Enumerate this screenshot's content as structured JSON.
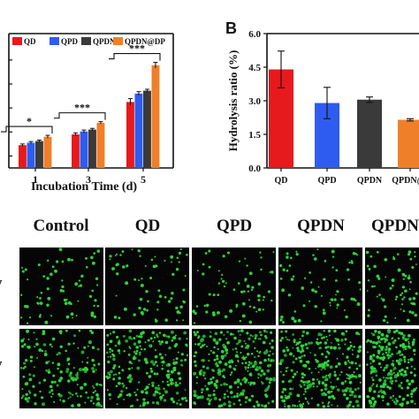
{
  "panel_b_letter": "B",
  "chart_data": [
    {
      "type": "bar",
      "panel": "A",
      "categories": [
        "1",
        "3",
        "5"
      ],
      "xlabel": "Incubation Time (d)",
      "ylabel": "",
      "ylim": [
        0,
        5.6
      ],
      "legend_placement": "top",
      "series": [
        {
          "name": "QD",
          "color": "#e8191c",
          "values": [
            0.95,
            1.4,
            2.75
          ],
          "errors": [
            0.05,
            0.06,
            0.14
          ]
        },
        {
          "name": "QPD",
          "color": "#2f5cf0",
          "values": [
            1.05,
            1.52,
            3.1
          ],
          "errors": [
            0.05,
            0.06,
            0.08
          ]
        },
        {
          "name": "QPDN",
          "color": "#3a3a3a",
          "values": [
            1.12,
            1.6,
            3.22
          ],
          "errors": [
            0.04,
            0.05,
            0.06
          ]
        },
        {
          "name": "QPDN@DP",
          "color": "#f07f2a",
          "values": [
            1.3,
            1.88,
            4.28
          ],
          "errors": [
            0.06,
            0.05,
            0.12
          ]
        }
      ],
      "significance": [
        {
          "category": "1",
          "label": "*"
        },
        {
          "category": "3",
          "label": "***"
        },
        {
          "category": "5",
          "label": "***"
        }
      ]
    },
    {
      "type": "bar",
      "panel": "B",
      "categories": [
        "QD",
        "QPD",
        "QPDN",
        "QPDN@DP"
      ],
      "category_labels_shown": [
        "QD",
        "QPD",
        "QPDN",
        "QPDN@I"
      ],
      "values": [
        4.4,
        2.9,
        3.05,
        2.15
      ],
      "errors": [
        0.82,
        0.7,
        0.12,
        0.05
      ],
      "colors": [
        "#e8191c",
        "#2f5cf0",
        "#3a3a3a",
        "#f07f2a"
      ],
      "ylabel": "Hydrolysis ratio (%)",
      "xlabel": "",
      "ylim": [
        0,
        6.0
      ],
      "yticks": [
        "0.0",
        "1.5",
        "3.0",
        "4.5",
        "6.0"
      ]
    }
  ],
  "micrographs": {
    "columns": [
      "Control",
      "QD",
      "QPD",
      "QPDN",
      "QPDN@"
    ],
    "rows": [
      "y",
      "y"
    ],
    "cell_color": "#2fd23a"
  }
}
